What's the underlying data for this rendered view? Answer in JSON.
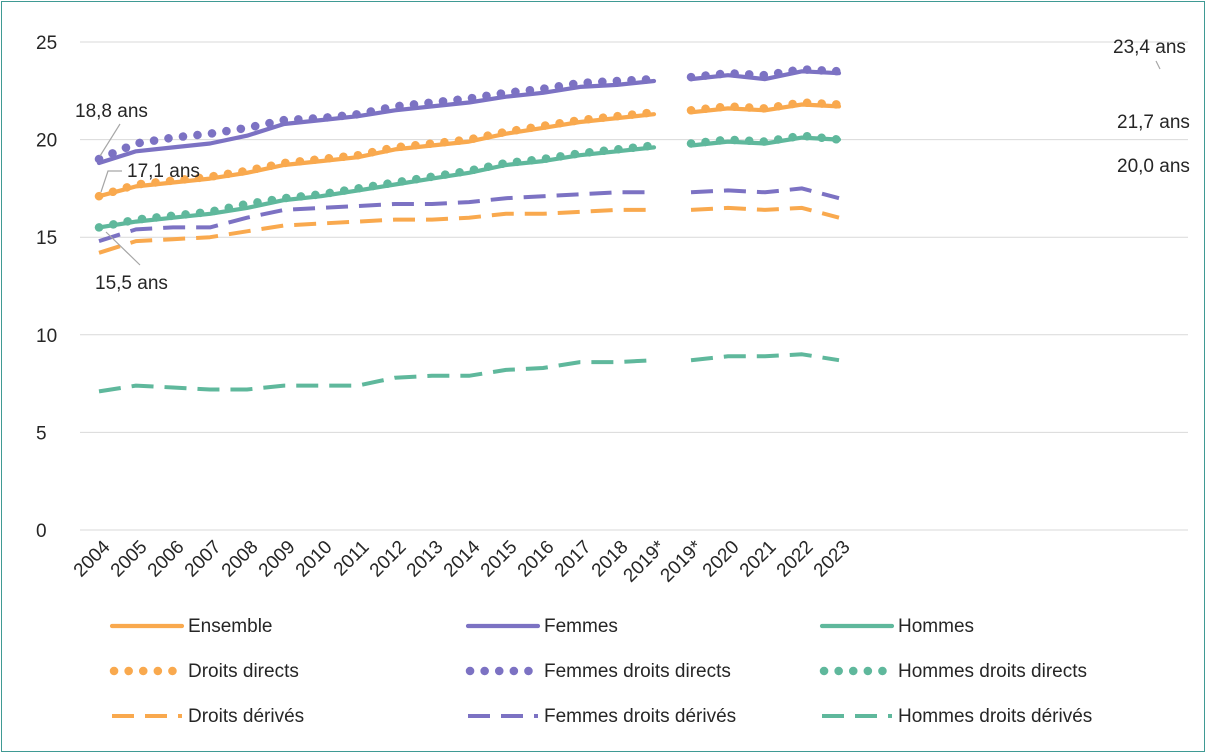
{
  "chart_data": {
    "type": "line",
    "ylim": [
      0,
      25
    ],
    "yticks": [
      0,
      5,
      10,
      15,
      20,
      25
    ],
    "grid": true,
    "legend_position": "bottom",
    "categories": [
      "2004",
      "2005",
      "2006",
      "2007",
      "2008",
      "2009",
      "2010",
      "2011",
      "2012",
      "2013",
      "2014",
      "2015",
      "2016",
      "2017",
      "2018",
      "2019*",
      "2019*",
      "2020",
      "2021",
      "2022",
      "2023"
    ],
    "segments": [
      {
        "from": 0,
        "to": 15
      },
      {
        "from": 16,
        "to": 20
      }
    ],
    "series": [
      {
        "name": "Ensemble",
        "color": "#f9a94e",
        "style": "solid",
        "values": [
          17.1,
          17.6,
          17.8,
          18.0,
          18.3,
          18.7,
          18.9,
          19.1,
          19.5,
          19.7,
          19.9,
          20.3,
          20.6,
          20.9,
          21.1,
          21.3,
          21.4,
          21.6,
          21.5,
          21.8,
          21.7
        ]
      },
      {
        "name": "Femmes",
        "color": "#7c72c3",
        "style": "solid",
        "values": [
          18.8,
          19.4,
          19.6,
          19.8,
          20.2,
          20.8,
          21.0,
          21.2,
          21.5,
          21.7,
          21.9,
          22.2,
          22.4,
          22.7,
          22.8,
          23.0,
          23.1,
          23.3,
          23.1,
          23.5,
          23.4
        ]
      },
      {
        "name": "Hommes",
        "color": "#5fb89c",
        "style": "solid",
        "values": [
          15.5,
          15.8,
          16.0,
          16.2,
          16.5,
          16.9,
          17.1,
          17.4,
          17.7,
          18.0,
          18.3,
          18.7,
          18.9,
          19.2,
          19.4,
          19.6,
          19.7,
          19.9,
          19.8,
          20.1,
          20.0
        ]
      },
      {
        "name": "Droits directs",
        "color": "#f9a94e",
        "style": "dotted",
        "values": [
          17.1,
          17.7,
          17.9,
          18.1,
          18.4,
          18.8,
          19.0,
          19.2,
          19.6,
          19.8,
          20.0,
          20.4,
          20.7,
          21.0,
          21.2,
          21.4,
          21.5,
          21.7,
          21.6,
          21.9,
          21.8
        ]
      },
      {
        "name": "Femmes droits directs",
        "color": "#7c72c3",
        "style": "dotted",
        "values": [
          19.0,
          19.8,
          20.1,
          20.3,
          20.6,
          21.0,
          21.1,
          21.3,
          21.7,
          21.9,
          22.1,
          22.4,
          22.6,
          22.9,
          23.0,
          23.1,
          23.2,
          23.4,
          23.3,
          23.6,
          23.5
        ]
      },
      {
        "name": "Hommes droits directs",
        "color": "#5fb89c",
        "style": "dotted",
        "values": [
          15.5,
          15.9,
          16.1,
          16.3,
          16.7,
          17.0,
          17.2,
          17.5,
          17.8,
          18.1,
          18.4,
          18.8,
          19.0,
          19.3,
          19.5,
          19.7,
          19.8,
          20.0,
          19.9,
          20.2,
          20.0
        ]
      },
      {
        "name": "Droits dérivés",
        "color": "#f9a94e",
        "style": "dashed",
        "values": [
          14.2,
          14.8,
          14.9,
          15.0,
          15.3,
          15.6,
          15.7,
          15.8,
          15.9,
          15.9,
          16.0,
          16.2,
          16.2,
          16.3,
          16.4,
          16.4,
          16.4,
          16.5,
          16.4,
          16.5,
          16.0
        ]
      },
      {
        "name": "Femmes droits dérivés",
        "color": "#7c72c3",
        "style": "dashed",
        "values": [
          14.8,
          15.4,
          15.5,
          15.5,
          16.0,
          16.4,
          16.5,
          16.6,
          16.7,
          16.7,
          16.8,
          17.0,
          17.1,
          17.2,
          17.3,
          17.3,
          17.3,
          17.4,
          17.3,
          17.5,
          17.0
        ]
      },
      {
        "name": "Hommes droits dérivés",
        "color": "#5fb89c",
        "style": "dashed",
        "values": [
          7.1,
          7.4,
          7.3,
          7.2,
          7.2,
          7.4,
          7.4,
          7.4,
          7.8,
          7.9,
          7.9,
          8.2,
          8.3,
          8.6,
          8.6,
          8.7,
          8.7,
          8.9,
          8.9,
          9.0,
          8.7
        ]
      }
    ],
    "annotations": [
      {
        "text": "18,8 ans",
        "index": 0,
        "value": 18.8
      },
      {
        "text": "17,1 ans",
        "index": 0,
        "value": 17.1
      },
      {
        "text": "15,5 ans",
        "index": 0,
        "value": 15.5
      },
      {
        "text": "23,4 ans",
        "index": 20,
        "value": 23.4
      },
      {
        "text": "21,7 ans",
        "index": 20,
        "value": 21.7
      },
      {
        "text": "20,0 ans",
        "index": 20,
        "value": 20.0
      }
    ]
  }
}
